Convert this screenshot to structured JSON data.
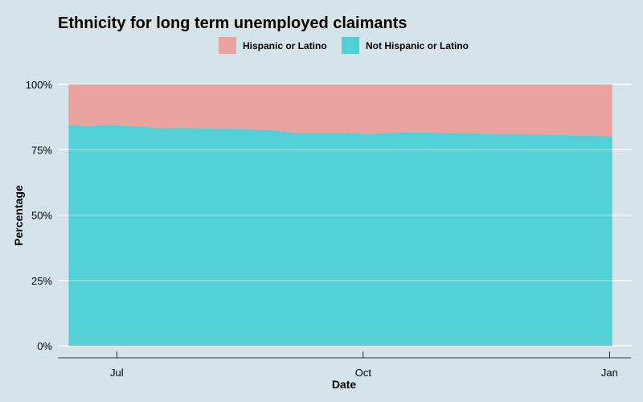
{
  "chart_data": {
    "type": "area",
    "stacked": "percent",
    "title": "Ethnicity for long term unemployed claimants",
    "xlabel": "Date",
    "ylabel": "Percentage",
    "ylim": [
      0,
      1
    ],
    "y_ticks": [
      {
        "value": 0,
        "label": "0%"
      },
      {
        "value": 0.25,
        "label": "25%"
      },
      {
        "value": 0.5,
        "label": "50%"
      },
      {
        "value": 0.75,
        "label": "75%"
      },
      {
        "value": 1,
        "label": "100%"
      }
    ],
    "x_ticks": [
      {
        "value": "2020-07-01",
        "label": "Jul"
      },
      {
        "value": "2020-10-01",
        "label": "Oct"
      },
      {
        "value": "2021-01-01",
        "label": "Jan"
      }
    ],
    "xlim": [
      "2020-06-09",
      "2021-01-09"
    ],
    "x": [
      "2020-06-13",
      "2020-06-20",
      "2020-06-27",
      "2020-07-04",
      "2020-07-11",
      "2020-07-18",
      "2020-07-25",
      "2020-08-01",
      "2020-08-08",
      "2020-08-15",
      "2020-08-22",
      "2020-08-29",
      "2020-09-05",
      "2020-09-12",
      "2020-09-19",
      "2020-09-26",
      "2020-10-03",
      "2020-10-10",
      "2020-10-17",
      "2020-10-24",
      "2020-10-31",
      "2020-11-07",
      "2020-11-14",
      "2020-11-21",
      "2020-11-28",
      "2020-12-05",
      "2020-12-12",
      "2020-12-19",
      "2020-12-26",
      "2021-01-02"
    ],
    "series": [
      {
        "name": "Hispanic or Latino",
        "values": [
          0.155,
          0.16,
          0.155,
          0.158,
          0.162,
          0.168,
          0.165,
          0.168,
          0.17,
          0.17,
          0.172,
          0.176,
          0.185,
          0.186,
          0.186,
          0.186,
          0.19,
          0.185,
          0.183,
          0.183,
          0.185,
          0.188,
          0.188,
          0.19,
          0.19,
          0.192,
          0.193,
          0.195,
          0.195,
          0.198
        ]
      },
      {
        "name": "Not Hispanic or Latino",
        "values": [
          0.845,
          0.84,
          0.845,
          0.842,
          0.838,
          0.832,
          0.835,
          0.832,
          0.83,
          0.83,
          0.828,
          0.824,
          0.815,
          0.814,
          0.814,
          0.814,
          0.81,
          0.815,
          0.817,
          0.817,
          0.815,
          0.812,
          0.812,
          0.81,
          0.81,
          0.808,
          0.807,
          0.805,
          0.805,
          0.802
        ]
      }
    ],
    "colors": {
      "Hispanic or Latino": "#eba3a0",
      "Not Hispanic or Latino": "#53d0d6"
    },
    "background": "#d5e4eb",
    "grid": true,
    "legend_position": "top"
  }
}
